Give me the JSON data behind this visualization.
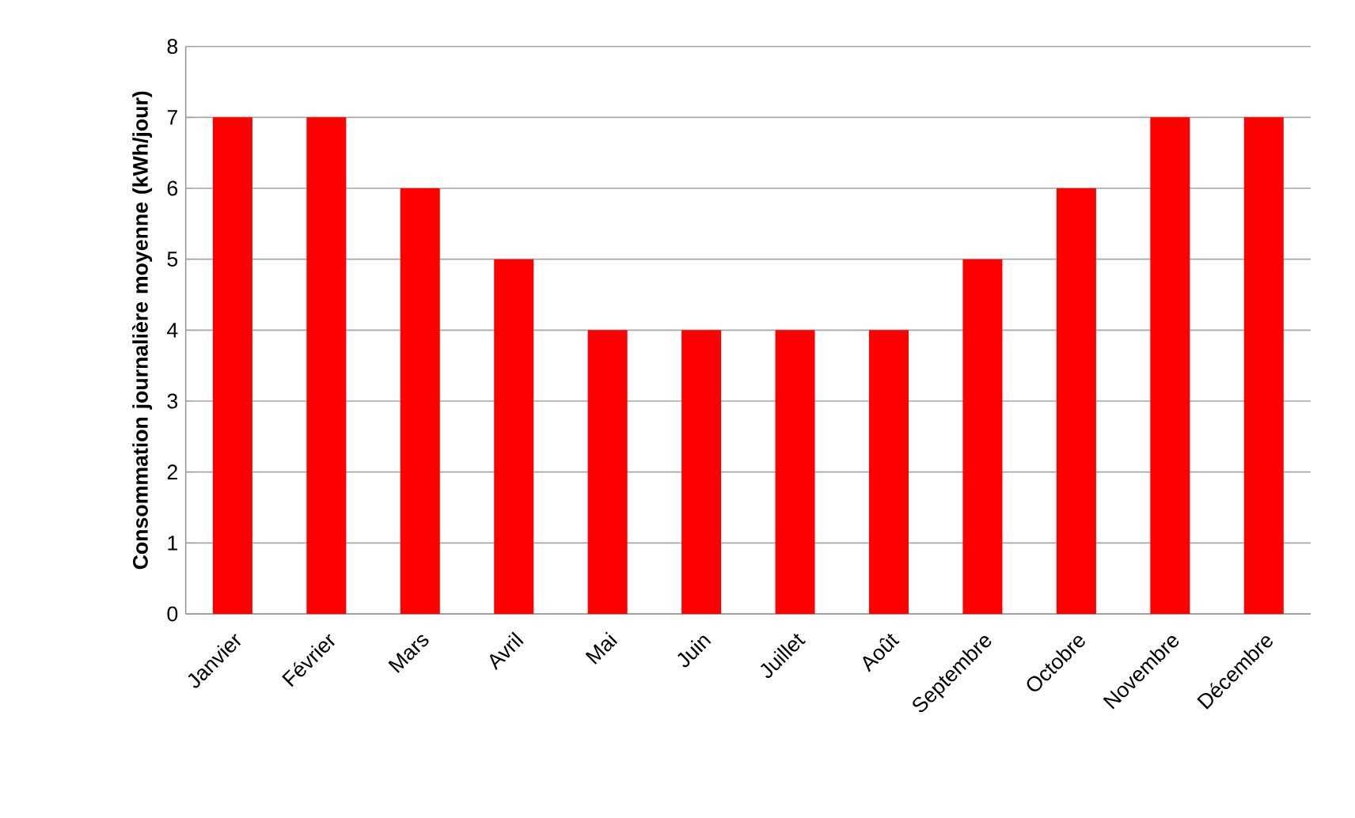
{
  "chart_data": {
    "type": "bar",
    "ylabel": "Consommation journalière moyenne (kWh/jour)",
    "categories": [
      "Janvier",
      "Février",
      "Mars",
      "Avril",
      "Mai",
      "Juin",
      "Juillet",
      "Août",
      "Septembre",
      "Octobre",
      "Novembre",
      "Décembre"
    ],
    "values": [
      7,
      7,
      6,
      5,
      4,
      4,
      4,
      4,
      5,
      6,
      7,
      7
    ],
    "color": "#ff0000",
    "ylim": [
      0,
      8
    ],
    "yticks": [
      0,
      1,
      2,
      3,
      4,
      5,
      6,
      7,
      8
    ],
    "grid": "y"
  }
}
